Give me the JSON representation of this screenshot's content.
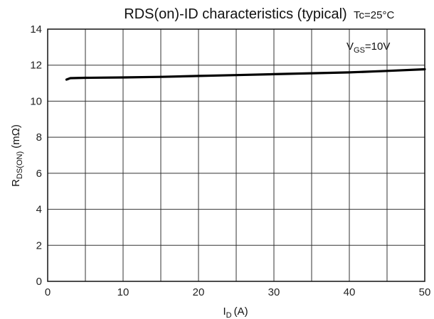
{
  "chart_data": {
    "type": "line",
    "title": "RDS(on)-ID characteristics (typical)",
    "conditions": {
      "temperature": "Tc=25°C",
      "vgs_main": "V",
      "vgs_sub": "GS",
      "vgs_value": "=10V"
    },
    "xlabel": {
      "main": "I",
      "sub": "D",
      "unit": "(A)"
    },
    "ylabel": {
      "main": "R",
      "sub": "DS(ON)",
      "unit": "(mΩ)"
    },
    "xlim": [
      0,
      50
    ],
    "ylim": [
      0,
      14
    ],
    "xticks": [
      0,
      10,
      20,
      30,
      40,
      50
    ],
    "yticks": [
      0,
      2,
      4,
      6,
      8,
      10,
      12,
      14
    ],
    "x_grid_step": 5,
    "y_grid_step": 2,
    "grid": true,
    "series": [
      {
        "x": [
          2.5,
          3,
          5,
          10,
          15,
          20,
          25,
          30,
          35,
          40,
          45,
          50
        ],
        "y": [
          11.2,
          11.28,
          11.3,
          11.32,
          11.35,
          11.4,
          11.45,
          11.5,
          11.55,
          11.6,
          11.68,
          11.77
        ]
      }
    ],
    "colors": {
      "series": "#000000",
      "grid": "#333333"
    }
  }
}
